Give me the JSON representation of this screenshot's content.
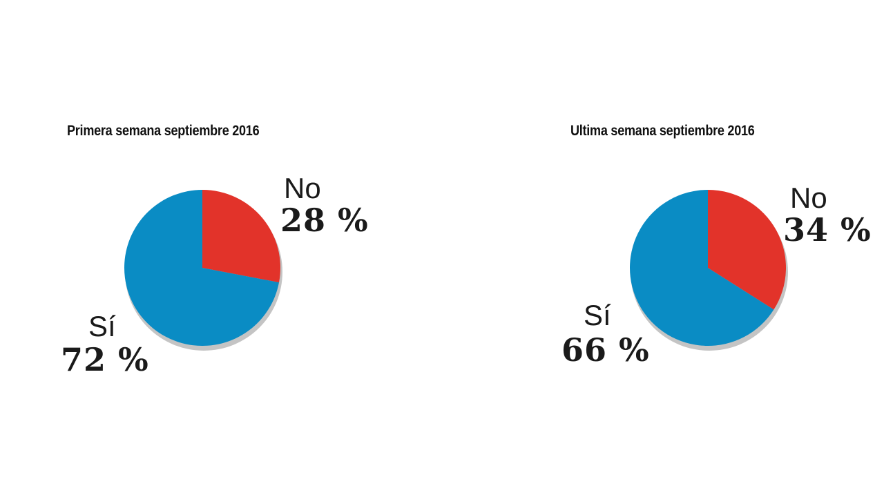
{
  "chart_data": [
    {
      "type": "pie",
      "title": "Primera semana septiembre 2016",
      "slices": [
        {
          "label": "No",
          "value": 28,
          "value_text": "28 %",
          "color": "#e2332a"
        },
        {
          "label": "Sí",
          "value": 72,
          "value_text": "72 %",
          "color": "#0a8cc4"
        }
      ]
    },
    {
      "type": "pie",
      "title": "Ultima semana septiembre 2016",
      "slices": [
        {
          "label": "No",
          "value": 34,
          "value_text": "34 %",
          "color": "#e2332a"
        },
        {
          "label": "Sí",
          "value": 66,
          "value_text": "66 %",
          "color": "#0a8cc4"
        }
      ]
    }
  ]
}
